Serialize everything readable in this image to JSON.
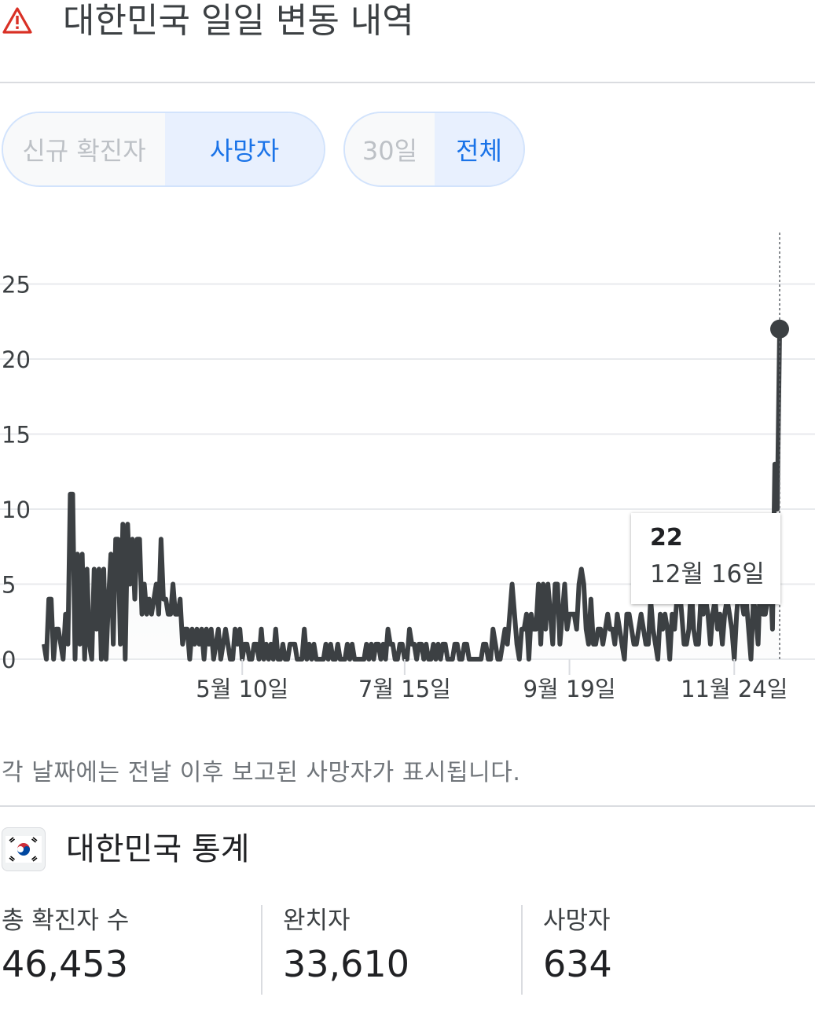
{
  "header": {
    "title": "대한민국 일일 변동 내역",
    "icon": "warning-triangle-icon",
    "icon_color": "#d93025"
  },
  "metric_toggle": {
    "options": [
      "신규 확진자",
      "사망자"
    ],
    "selected": "사망자"
  },
  "range_toggle": {
    "options": [
      "30일",
      "전체"
    ],
    "selected": "전체"
  },
  "chart_data": {
    "type": "line",
    "title": "",
    "xlabel": "",
    "ylabel": "",
    "ylim": [
      0,
      28
    ],
    "y_ticks": [
      "0",
      "5",
      "10",
      "15",
      "20",
      "25"
    ],
    "x_ticks": [
      "5월 10일",
      "7월 15일",
      "9월 19일",
      "11월 24일"
    ],
    "grid": true,
    "line_color": "#3c4043",
    "series": [
      {
        "values": [
          1,
          0,
          4,
          4,
          0,
          2,
          2,
          1,
          0,
          3,
          1,
          11,
          11,
          0,
          7,
          1,
          7,
          0,
          6,
          1,
          0,
          6,
          2,
          6,
          0,
          6,
          0,
          4,
          7,
          1,
          8,
          8,
          1,
          9,
          0,
          9,
          5,
          8,
          4,
          8,
          8,
          3,
          5,
          3,
          4,
          3,
          4,
          5,
          3,
          8,
          4,
          4,
          3,
          3,
          5,
          3,
          3,
          4,
          1,
          2,
          2,
          0,
          2,
          1,
          2,
          1,
          2,
          0,
          2,
          1,
          2,
          0,
          1,
          2,
          0,
          1,
          2,
          1,
          0,
          0,
          2,
          1,
          2,
          0,
          1,
          1,
          0,
          0,
          1,
          1,
          0,
          2,
          0,
          1,
          0,
          1,
          0,
          2,
          0,
          0,
          1,
          0,
          0,
          1,
          1,
          1,
          0,
          0,
          0,
          2,
          0,
          1,
          0,
          1,
          0,
          0,
          0,
          0,
          1,
          0,
          1,
          0,
          0,
          1,
          0,
          0,
          0,
          1,
          0,
          1,
          0,
          0,
          0,
          0,
          0,
          1,
          0,
          1,
          0,
          1,
          1,
          0,
          1,
          0,
          2,
          1,
          1,
          0,
          0,
          1,
          1,
          0,
          0,
          2,
          1,
          1,
          0,
          1,
          1,
          0,
          1,
          0,
          0,
          1,
          0,
          1,
          0,
          1,
          1,
          0,
          0,
          0,
          1,
          1,
          0,
          0,
          1,
          1,
          0,
          0,
          0,
          0,
          0,
          0,
          1,
          1,
          0,
          0,
          2,
          1,
          0,
          0,
          1,
          2,
          1,
          3,
          5,
          3,
          1,
          0,
          2,
          2,
          3,
          0,
          3,
          2,
          2,
          5,
          1,
          5,
          2,
          5,
          3,
          1,
          5,
          5,
          1,
          3,
          5,
          2,
          3,
          3,
          3,
          2,
          5,
          6,
          5,
          2,
          1,
          4,
          1,
          1,
          2,
          2,
          1,
          2,
          3,
          2,
          2,
          1,
          3,
          2,
          1,
          0,
          3,
          3,
          2,
          1,
          1,
          2,
          3,
          2,
          1,
          1,
          4,
          2,
          1,
          0,
          3,
          2,
          3,
          2,
          0,
          3,
          2,
          4,
          5,
          3,
          1,
          1,
          2,
          5,
          2,
          1,
          1,
          4,
          3,
          4,
          3,
          1,
          3,
          4,
          2,
          3,
          1,
          3,
          4,
          3,
          2,
          0,
          3,
          5,
          4,
          3,
          4,
          2,
          0,
          4,
          3,
          1,
          6,
          3,
          3,
          4,
          6,
          2,
          13,
          10,
          22
        ]
      }
    ],
    "tooltip": {
      "value": "22",
      "date": "12월 16일"
    }
  },
  "footnote": "각 날짜에는 전날 이후 보고된 사망자가 표시됩니다.",
  "stats": {
    "flag_icon": "south-korea-flag-icon",
    "title": "대한민국 통계",
    "items": [
      {
        "label": "총 확진자 수",
        "value": "46,453"
      },
      {
        "label": "완치자",
        "value": "33,610"
      },
      {
        "label": "사망자",
        "value": "634"
      }
    ]
  }
}
